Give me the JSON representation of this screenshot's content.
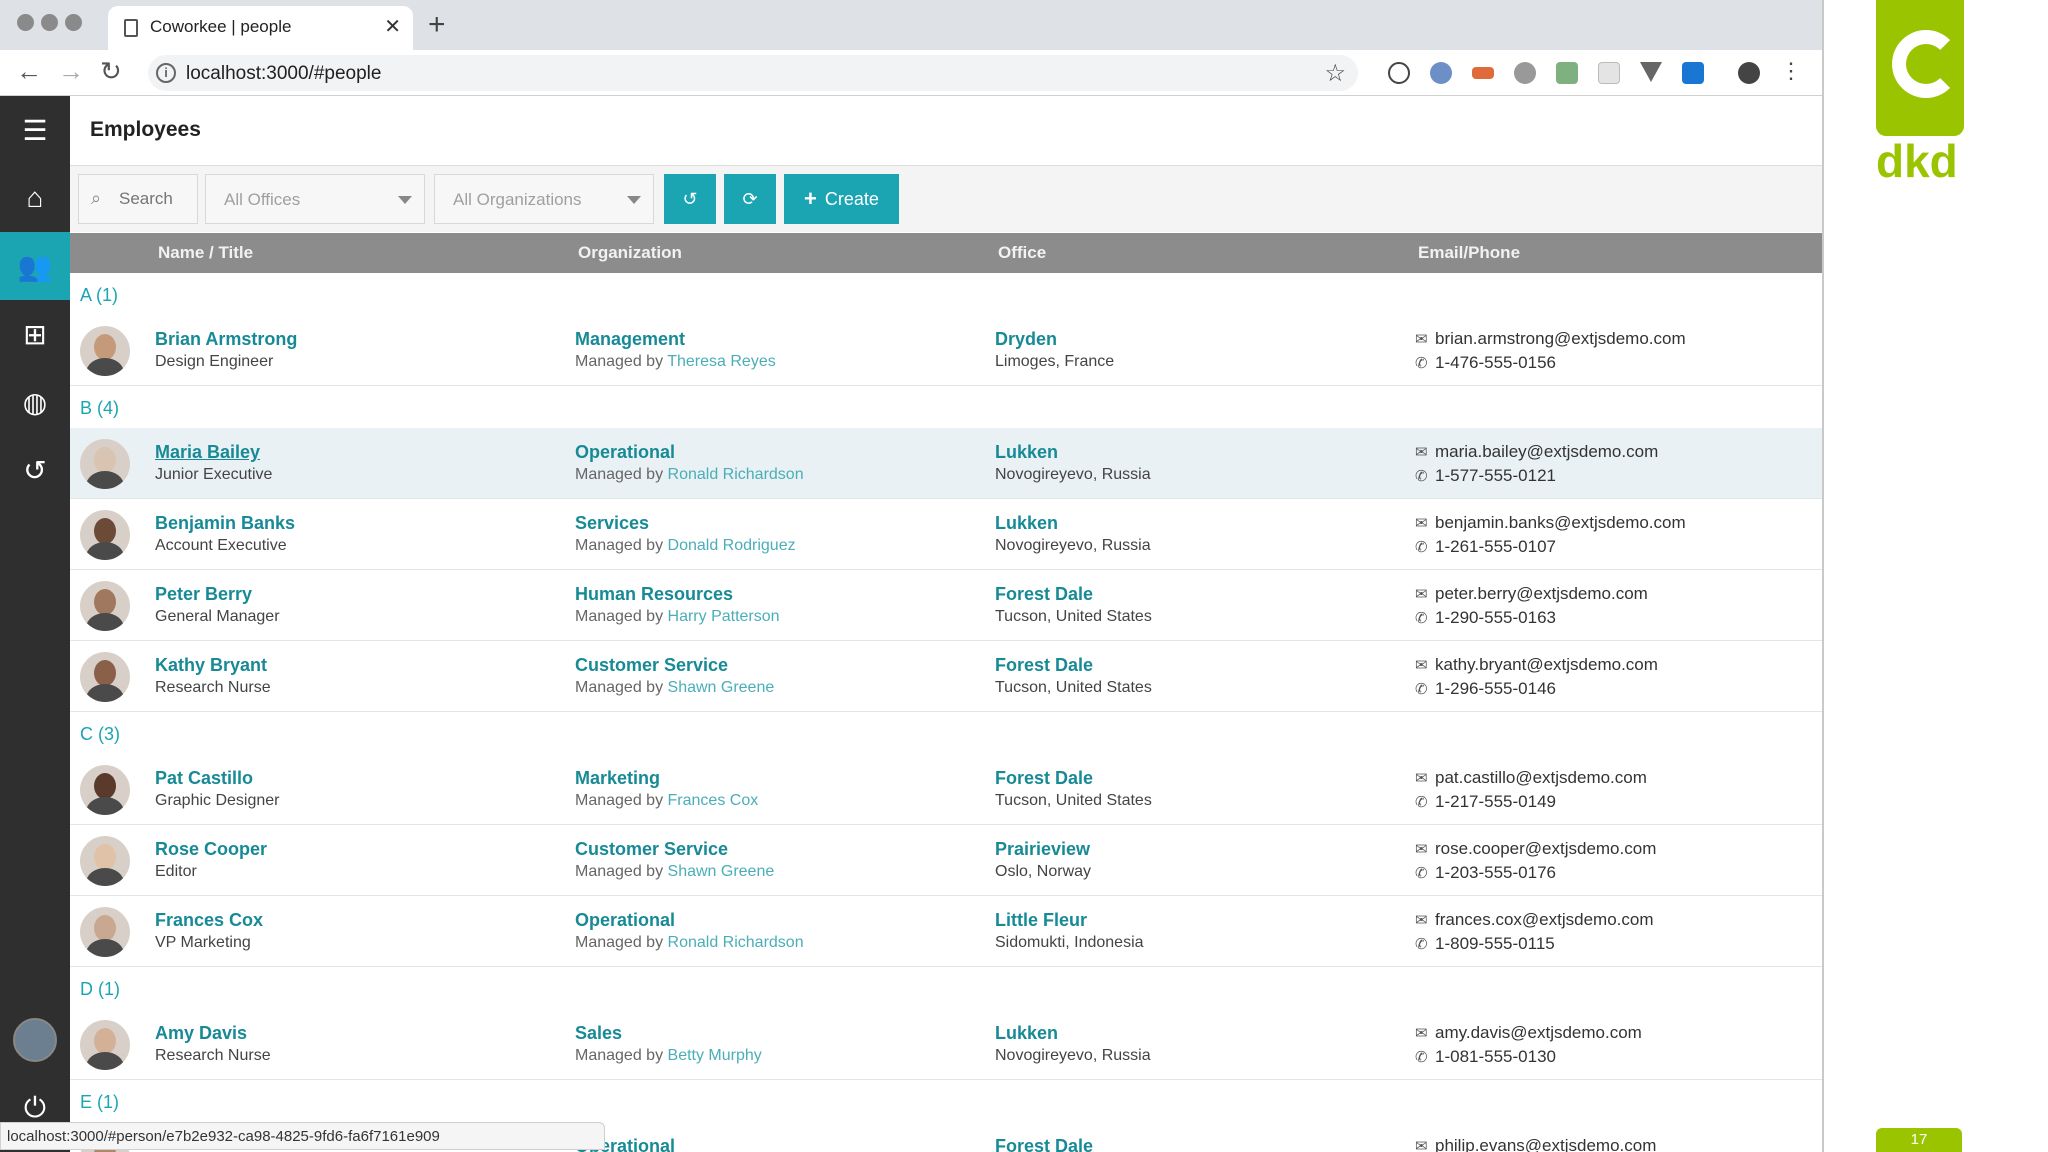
{
  "browser": {
    "tab_title": "Coworkee | people",
    "url": "localhost:3000/#people",
    "status_url": "localhost:3000/#person/e7b2e932-ca98-4825-9fd6-fa6f7161e909"
  },
  "app": {
    "page_title": "Employees",
    "sidebar": [
      "menu-icon",
      "home-icon",
      "people-icon",
      "org-chart-icon",
      "globe-icon",
      "history-icon",
      "avatar",
      "power-icon"
    ]
  },
  "filters": {
    "search_placeholder": "Search",
    "offices_value": "All Offices",
    "organizations_value": "All Organizations",
    "create_label": "Create"
  },
  "columns": {
    "name": "Name / Title",
    "organization": "Organization",
    "office": "Office",
    "contact": "Email/Phone"
  },
  "managed_by": "Managed by",
  "groups": [
    {
      "label": "A (1)",
      "rows": [
        {
          "name": "Brian Armstrong",
          "title": "Design Engineer",
          "org": "Management",
          "manager": "Theresa Reyes",
          "office": "Dryden",
          "location": "Limoges, France",
          "email": "brian.armstrong@extjsdemo.com",
          "phone": "1-476-555-0156"
        }
      ]
    },
    {
      "label": "B (4)",
      "rows": [
        {
          "name": "Maria Bailey",
          "title": "Junior Executive",
          "org": "Operational",
          "manager": "Ronald Richardson",
          "office": "Lukken",
          "location": "Novogireyevo, Russia",
          "email": "maria.bailey@extjsdemo.com",
          "phone": "1-577-555-0121"
        },
        {
          "name": "Benjamin Banks",
          "title": "Account Executive",
          "org": "Services",
          "manager": "Donald Rodriguez",
          "office": "Lukken",
          "location": "Novogireyevo, Russia",
          "email": "benjamin.banks@extjsdemo.com",
          "phone": "1-261-555-0107"
        },
        {
          "name": "Peter Berry",
          "title": "General Manager",
          "org": "Human Resources",
          "manager": "Harry Patterson",
          "office": "Forest Dale",
          "location": "Tucson, United States",
          "email": "peter.berry@extjsdemo.com",
          "phone": "1-290-555-0163"
        },
        {
          "name": "Kathy Bryant",
          "title": "Research Nurse",
          "org": "Customer Service",
          "manager": "Shawn Greene",
          "office": "Forest Dale",
          "location": "Tucson, United States",
          "email": "kathy.bryant@extjsdemo.com",
          "phone": "1-296-555-0146"
        }
      ]
    },
    {
      "label": "C (3)",
      "rows": [
        {
          "name": "Pat Castillo",
          "title": "Graphic Designer",
          "org": "Marketing",
          "manager": "Frances Cox",
          "office": "Forest Dale",
          "location": "Tucson, United States",
          "email": "pat.castillo@extjsdemo.com",
          "phone": "1-217-555-0149"
        },
        {
          "name": "Rose Cooper",
          "title": "Editor",
          "org": "Customer Service",
          "manager": "Shawn Greene",
          "office": "Prairieview",
          "location": "Oslo, Norway",
          "email": "rose.cooper@extjsdemo.com",
          "phone": "1-203-555-0176"
        },
        {
          "name": "Frances Cox",
          "title": "VP Marketing",
          "org": "Operational",
          "manager": "Ronald Richardson",
          "office": "Little Fleur",
          "location": "Sidomukti, Indonesia",
          "email": "frances.cox@extjsdemo.com",
          "phone": "1-809-555-0115"
        }
      ]
    },
    {
      "label": "D (1)",
      "rows": [
        {
          "name": "Amy Davis",
          "title": "Research Nurse",
          "org": "Sales",
          "manager": "Betty Murphy",
          "office": "Lukken",
          "location": "Novogireyevo, Russia",
          "email": "amy.davis@extjsdemo.com",
          "phone": "1-081-555-0130"
        }
      ]
    },
    {
      "label": "E (1)",
      "rows": [
        {
          "name": "",
          "title": "",
          "org": "Operational",
          "manager": "",
          "office": "Forest Dale",
          "location": "",
          "email": "philip.evans@extjsdemo.com",
          "phone": ""
        }
      ]
    }
  ],
  "brand": {
    "word": "dkd",
    "slide_number": "17",
    "accent": "#9bc400",
    "app_accent": "#1ba5b2"
  }
}
